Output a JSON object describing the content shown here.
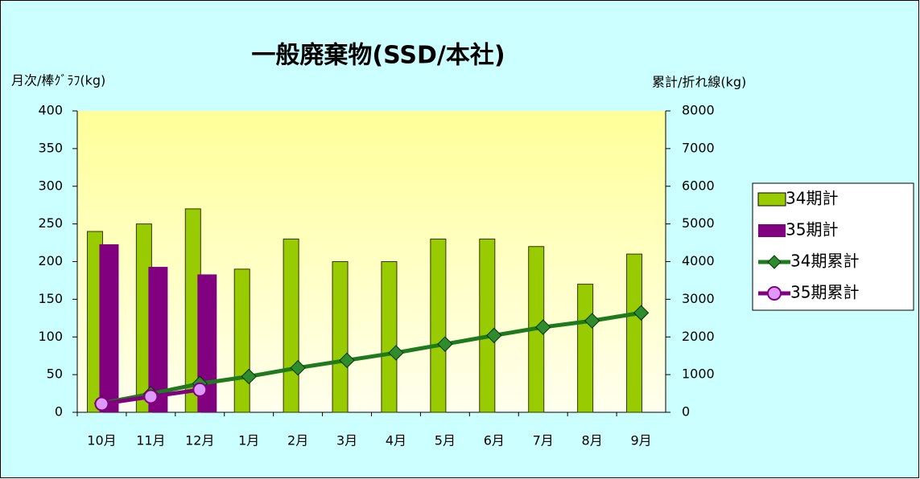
{
  "chart_data": {
    "type": "bar-line",
    "title": "一般廃棄物(SSD/本社)",
    "y_label": "月次/棒ｸﾞﾗﾌ(kg)",
    "y2_label": "累計/折れ線(kg)",
    "categories": [
      "10月",
      "11月",
      "12月",
      "1月",
      "2月",
      "3月",
      "4月",
      "5月",
      "6月",
      "7月",
      "8月",
      "9月"
    ],
    "series": [
      {
        "name": "34期計",
        "type": "bar",
        "color": "#99cc00",
        "values": [
          240,
          250,
          270,
          190,
          230,
          200,
          200,
          230,
          230,
          220,
          170,
          210
        ]
      },
      {
        "name": "35期計",
        "type": "bar",
        "color": "#800080",
        "values": [
          223,
          193,
          183,
          null,
          null,
          null,
          null,
          null,
          null,
          null,
          null,
          null
        ]
      },
      {
        "name": "34期累計",
        "type": "line",
        "axis": "y2",
        "marker": "diamond",
        "color": "#1f7a1f",
        "values": [
          240,
          490,
          760,
          950,
          1180,
          1380,
          1580,
          1810,
          2040,
          2260,
          2430,
          2640
        ]
      },
      {
        "name": "35期累計",
        "type": "line",
        "axis": "y2",
        "marker": "circle",
        "color": "#800080",
        "values": [
          223,
          416,
          599,
          null,
          null,
          null,
          null,
          null,
          null,
          null,
          null,
          null
        ]
      }
    ],
    "ylim": [
      0,
      400
    ],
    "yticks": [
      0,
      50,
      100,
      150,
      200,
      250,
      300,
      350,
      400
    ],
    "y2lim": [
      0,
      8000
    ],
    "y2ticks": [
      0,
      1000,
      2000,
      3000,
      4000,
      5000,
      6000,
      7000,
      8000
    ],
    "legend": "right"
  }
}
